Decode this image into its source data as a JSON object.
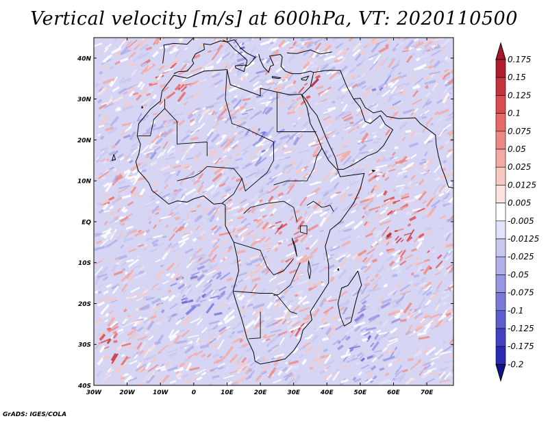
{
  "title": "Vertical velocity [m/s] at 600hPa, VT: 2020110500",
  "credit": "GrADS: IGES/COLA",
  "map": {
    "variable": "Vertical velocity",
    "units": "m/s",
    "level": "600hPa",
    "valid_time": "2020110500",
    "region": "Africa",
    "lon_range": [
      -30,
      78
    ],
    "lat_range": [
      -40,
      45
    ],
    "lat_ticks": [
      "40N",
      "30N",
      "20N",
      "10N",
      "EQ",
      "10S",
      "20S",
      "30S",
      "40S"
    ],
    "lon_ticks": [
      "30W",
      "20W",
      "10W",
      "0",
      "10E",
      "20E",
      "30E",
      "40E",
      "50E",
      "60E",
      "70E"
    ]
  },
  "colorbar": {
    "labels": [
      "0.175",
      "0.15",
      "0.125",
      "0.1",
      "0.075",
      "0.05",
      "0.025",
      "0.0125",
      "0.005",
      "-0.005",
      "-0.0125",
      "-0.025",
      "-0.05",
      "-0.075",
      "-0.1",
      "-0.125",
      "-0.175",
      "-0.2"
    ],
    "colors": [
      "#b01c2e",
      "#c8323c",
      "#dc4b4f",
      "#e66a68",
      "#ee8a86",
      "#f4aaa4",
      "#f8c8c2",
      "#fce4e0",
      "#ffffff",
      "#e2e2f8",
      "#c8c8f0",
      "#b0b0ea",
      "#9696e2",
      "#7a7ad8",
      "#5e5ece",
      "#4242c2",
      "#2a2ab2",
      "#1a1aa0"
    ],
    "upper_arrow_color": "#a8162a",
    "lower_arrow_color": "#12128c"
  },
  "palette": {
    "ocean_base": "#d6d6f4",
    "land_base": "#dcd6f0",
    "coast_color": "#000000"
  }
}
